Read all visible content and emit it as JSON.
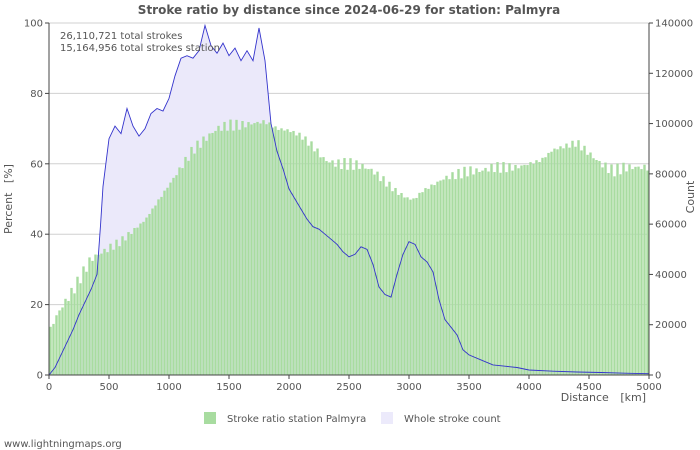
{
  "chart_data": {
    "type": "area",
    "title": "Stroke ratio by distance since 2024-06-29 for station: Palmyra",
    "xlabel": "Distance",
    "xunit": "[km]",
    "ylabel": "Percent",
    "yunit": "[%]",
    "y2label": "Count",
    "xlim": [
      0,
      5000
    ],
    "ylim": [
      0,
      100
    ],
    "y2lim": [
      0,
      140000
    ],
    "x_ticks": [
      "0",
      "500",
      "1000",
      "1500",
      "2000",
      "2500",
      "3000",
      "3500",
      "4000",
      "4500",
      "5000"
    ],
    "y_ticks": [
      "0",
      "20",
      "40",
      "60",
      "80",
      "100"
    ],
    "y2_ticks": [
      "0",
      "20000",
      "40000",
      "60000",
      "80000",
      "100000",
      "120000",
      "140000"
    ],
    "annotations": [
      "26,110,721 total strokes",
      "15,164,956 total strokes station"
    ],
    "legend": [
      "Stroke ratio station Palmyra",
      "Whole stroke count"
    ],
    "bin_km": 25,
    "series": [
      {
        "name": "Stroke ratio station Palmyra",
        "axis": "left",
        "points": [
          [
            0,
            12
          ],
          [
            50,
            16
          ],
          [
            100,
            19
          ],
          [
            200,
            24
          ],
          [
            300,
            30
          ],
          [
            350,
            33
          ],
          [
            400,
            34
          ],
          [
            500,
            36
          ],
          [
            600,
            38
          ],
          [
            700,
            41
          ],
          [
            800,
            44
          ],
          [
            900,
            49
          ],
          [
            1000,
            54
          ],
          [
            1100,
            59
          ],
          [
            1200,
            64
          ],
          [
            1300,
            67
          ],
          [
            1400,
            70
          ],
          [
            1500,
            71
          ],
          [
            1600,
            71
          ],
          [
            1700,
            71.5
          ],
          [
            1800,
            72
          ],
          [
            1850,
            71
          ],
          [
            1900,
            70
          ],
          [
            2000,
            69.5
          ],
          [
            2100,
            68
          ],
          [
            2200,
            65
          ],
          [
            2300,
            61
          ],
          [
            2400,
            60
          ],
          [
            2500,
            60
          ],
          [
            2600,
            59.5
          ],
          [
            2700,
            58
          ],
          [
            2800,
            55
          ],
          [
            2900,
            52
          ],
          [
            3000,
            50
          ],
          [
            3050,
            50
          ],
          [
            3100,
            52
          ],
          [
            3200,
            54
          ],
          [
            3300,
            56
          ],
          [
            3400,
            57
          ],
          [
            3500,
            58
          ],
          [
            3600,
            58
          ],
          [
            3700,
            59
          ],
          [
            3800,
            59
          ],
          [
            3900,
            59
          ],
          [
            4000,
            60
          ],
          [
            4100,
            61
          ],
          [
            4200,
            64
          ],
          [
            4300,
            65
          ],
          [
            4400,
            66
          ],
          [
            4500,
            63
          ],
          [
            4600,
            60
          ],
          [
            4700,
            58
          ],
          [
            4800,
            59
          ],
          [
            4900,
            59
          ],
          [
            5000,
            59
          ]
        ]
      },
      {
        "name": "Whole stroke count",
        "axis": "right",
        "points": [
          [
            0,
            0
          ],
          [
            50,
            3000
          ],
          [
            100,
            8000
          ],
          [
            150,
            13000
          ],
          [
            200,
            18000
          ],
          [
            250,
            24000
          ],
          [
            300,
            29000
          ],
          [
            350,
            34000
          ],
          [
            400,
            40000
          ],
          [
            430,
            60000
          ],
          [
            450,
            75000
          ],
          [
            500,
            94000
          ],
          [
            550,
            99000
          ],
          [
            600,
            96000
          ],
          [
            650,
            106000
          ],
          [
            700,
            99000
          ],
          [
            750,
            95000
          ],
          [
            800,
            98000
          ],
          [
            850,
            104000
          ],
          [
            900,
            106000
          ],
          [
            950,
            105000
          ],
          [
            1000,
            110000
          ],
          [
            1050,
            119000
          ],
          [
            1100,
            126000
          ],
          [
            1150,
            127000
          ],
          [
            1200,
            126000
          ],
          [
            1250,
            129000
          ],
          [
            1300,
            139000
          ],
          [
            1350,
            131000
          ],
          [
            1400,
            128000
          ],
          [
            1450,
            132000
          ],
          [
            1500,
            127000
          ],
          [
            1550,
            130000
          ],
          [
            1600,
            125000
          ],
          [
            1650,
            129000
          ],
          [
            1700,
            125000
          ],
          [
            1750,
            138000
          ],
          [
            1800,
            125000
          ],
          [
            1850,
            100000
          ],
          [
            1900,
            89000
          ],
          [
            1950,
            82000
          ],
          [
            2000,
            74000
          ],
          [
            2050,
            70000
          ],
          [
            2100,
            66000
          ],
          [
            2150,
            62000
          ],
          [
            2200,
            59000
          ],
          [
            2250,
            58000
          ],
          [
            2300,
            56000
          ],
          [
            2350,
            54000
          ],
          [
            2400,
            52000
          ],
          [
            2450,
            49000
          ],
          [
            2500,
            47000
          ],
          [
            2550,
            48000
          ],
          [
            2600,
            51000
          ],
          [
            2650,
            50000
          ],
          [
            2700,
            44000
          ],
          [
            2750,
            35000
          ],
          [
            2800,
            32000
          ],
          [
            2850,
            31000
          ],
          [
            2900,
            40000
          ],
          [
            2950,
            48000
          ],
          [
            3000,
            53000
          ],
          [
            3050,
            52000
          ],
          [
            3100,
            47000
          ],
          [
            3150,
            45000
          ],
          [
            3200,
            41000
          ],
          [
            3250,
            30000
          ],
          [
            3300,
            22000
          ],
          [
            3350,
            19000
          ],
          [
            3400,
            16000
          ],
          [
            3450,
            10000
          ],
          [
            3500,
            8000
          ],
          [
            3600,
            6000
          ],
          [
            3700,
            4000
          ],
          [
            3800,
            3500
          ],
          [
            3900,
            3000
          ],
          [
            4000,
            2000
          ],
          [
            4200,
            1500
          ],
          [
            4400,
            1200
          ],
          [
            4600,
            1000
          ],
          [
            4800,
            700
          ],
          [
            5000,
            500
          ]
        ]
      }
    ]
  },
  "colors": {
    "ratio_bar": "#a8dca0",
    "ratio_bar_stroke": "#96d28e",
    "count_fill": "#ebe9fa",
    "count_line": "#3333cc",
    "grid": "#d0d0d0",
    "axis": "#444444",
    "text": "#555555",
    "legend_count": "#eceafb"
  },
  "footer": {
    "credit": "www.lightningmaps.org"
  }
}
